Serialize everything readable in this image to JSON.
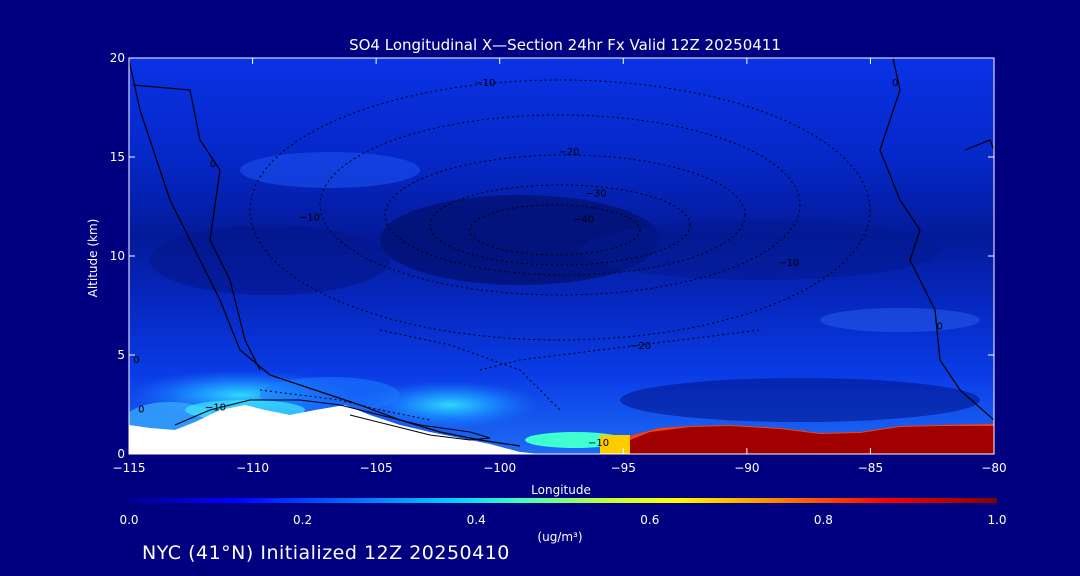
{
  "chart_data": {
    "type": "heatmap",
    "title": "SO4 Longitudinal X—Section 24hr  Fx Valid 12Z 20250411",
    "xlabel": "Longitude",
    "ylabel": "Altitude (km)",
    "xlim": [
      -115,
      -80
    ],
    "ylim": [
      0,
      20
    ],
    "x_ticks": [
      -115,
      -110,
      -105,
      -100,
      -95,
      -90,
      -85,
      -80
    ],
    "x_tick_labels": [
      "−115",
      "−110",
      "−105",
      "−100",
      "−95",
      "−90",
      "−85",
      "−80"
    ],
    "y_ticks": [
      0,
      5,
      10,
      15,
      20
    ],
    "y_tick_labels": [
      "0",
      "5",
      "10",
      "15",
      "20"
    ],
    "colorbar": {
      "ticks": [
        0.0,
        0.2,
        0.4,
        0.6,
        0.8,
        1.0
      ],
      "tick_labels": [
        "0.0",
        "0.2",
        "0.4",
        "0.6",
        "0.8",
        "1.0"
      ],
      "label": "(ug/m³)",
      "colors": [
        "#00008f",
        "#0000ff",
        "#0080ff",
        "#00ffff",
        "#80ff80",
        "#ffff00",
        "#ff8000",
        "#ff0000",
        "#800000"
      ]
    },
    "contour_labels": [
      {
        "text": "−10",
        "lon": -100.6,
        "alt": 18.8
      },
      {
        "text": "−20",
        "lon": -97.2,
        "alt": 15.3
      },
      {
        "text": "−30",
        "lon": -96.1,
        "alt": 13.2
      },
      {
        "text": "−40",
        "lon": -96.6,
        "alt": 11.9
      },
      {
        "text": "−10",
        "lon": -107.7,
        "alt": 12.0
      },
      {
        "text": "−10",
        "lon": -88.3,
        "alt": 9.7
      },
      {
        "text": "−20",
        "lon": -94.3,
        "alt": 5.5
      },
      {
        "text": "−10",
        "lon": -111.5,
        "alt": 2.4
      },
      {
        "text": "−10",
        "lon": -96.0,
        "alt": 0.6
      },
      {
        "text": "0",
        "lon": -114.5,
        "alt": 2.3
      },
      {
        "text": "0",
        "lon": -111.6,
        "alt": 14.7
      },
      {
        "text": "0",
        "lon": -84.0,
        "alt": 18.8
      },
      {
        "text": "0",
        "lon": -82.2,
        "alt": 6.5
      },
      {
        "text": "0",
        "lon": -114.7,
        "alt": 4.8
      }
    ]
  },
  "footer": "NYC (41°N) Initialized 12Z 20250410"
}
